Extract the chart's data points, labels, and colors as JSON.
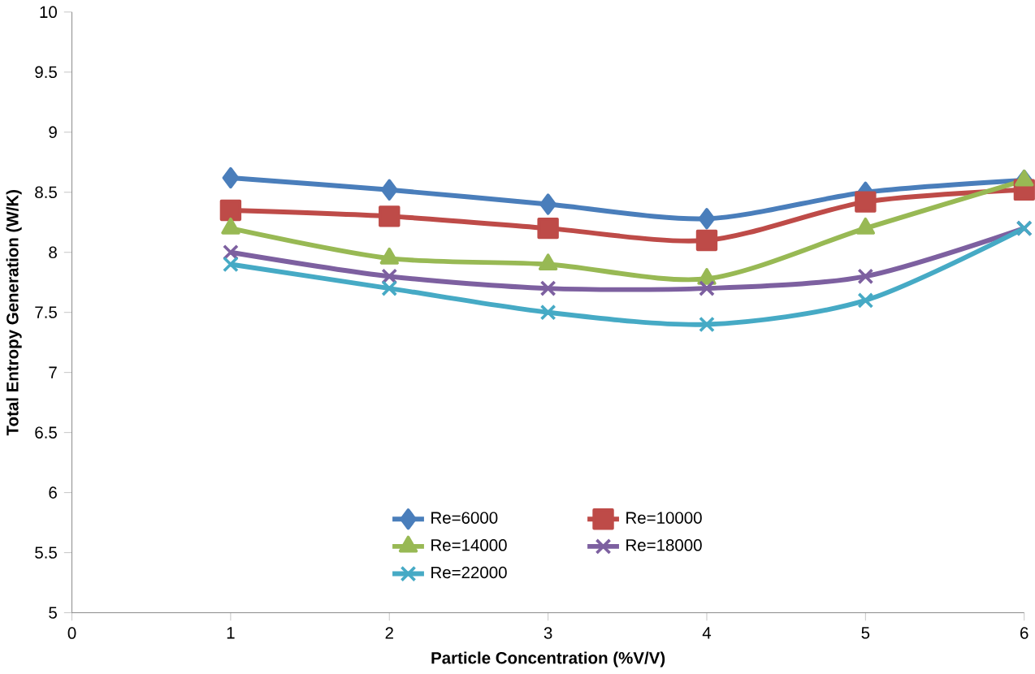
{
  "chart_data": {
    "type": "line",
    "xlabel": "Particle Concentration  (%V/V)",
    "ylabel": "Total Entropy Generation (W/K)",
    "x": [
      1,
      2,
      3,
      4,
      5,
      6
    ],
    "xlim": [
      0,
      6
    ],
    "xticks": [
      0,
      1,
      2,
      3,
      4,
      5,
      6
    ],
    "ylim": [
      5,
      10
    ],
    "yticks": [
      5,
      5.5,
      6,
      6.5,
      7,
      7.5,
      8,
      8.5,
      9,
      9.5,
      10
    ],
    "grid": false,
    "legend": "bottom",
    "series": [
      {
        "name": "Re=6000",
        "color": "#4a7ebb",
        "marker": "diamond",
        "values": [
          8.62,
          8.52,
          8.4,
          8.28,
          8.5,
          8.6
        ]
      },
      {
        "name": "Re=10000",
        "color": "#be4b48",
        "marker": "square",
        "values": [
          8.35,
          8.3,
          8.2,
          8.1,
          8.42,
          8.52
        ]
      },
      {
        "name": "Re=14000",
        "color": "#98b954",
        "marker": "triangle",
        "values": [
          8.2,
          7.95,
          7.9,
          7.78,
          8.2,
          8.6
        ]
      },
      {
        "name": "Re=18000",
        "color": "#7d60a0",
        "marker": "cross",
        "values": [
          8.0,
          7.8,
          7.7,
          7.7,
          7.8,
          8.2
        ]
      },
      {
        "name": "Re=22000",
        "color": "#46aac5",
        "marker": "cross",
        "values": [
          7.9,
          7.7,
          7.5,
          7.4,
          7.6,
          8.2
        ]
      }
    ]
  }
}
